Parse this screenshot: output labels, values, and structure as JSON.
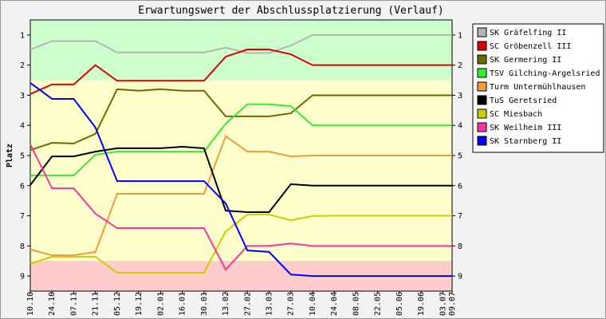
{
  "chart_data": {
    "type": "line",
    "title": "Erwartungswert der Abschlussplatzierung (Verlauf)",
    "y_label": "Platz",
    "categories": [
      "10.10",
      "24.10",
      "07.11",
      "21.11",
      "05.12",
      "19.12",
      "02.01",
      "16.01",
      "30.01",
      "13.02",
      "27.02",
      "13.03",
      "27.03",
      "10.04",
      "24.04",
      "08.05",
      "22.05",
      "05.06",
      "19.06",
      "03.07",
      "09.07"
    ],
    "ylim": [
      9.5,
      0.5
    ],
    "yticks": [
      1,
      2,
      3,
      4,
      5,
      6,
      7,
      8,
      9
    ],
    "zones": [
      {
        "from": 0.5,
        "to": 2.5,
        "color": "#ccffcc"
      },
      {
        "from": 2.5,
        "to": 8.5,
        "color": "#ffffcc"
      },
      {
        "from": 8.5,
        "to": 9.5,
        "color": "#ffcccc"
      }
    ],
    "legend": "right",
    "series": [
      {
        "name": "SK Gräfelfing II",
        "color": "#b4b4b4",
        "values": [
          1.48,
          1.2,
          1.2,
          1.2,
          1.58,
          1.58,
          1.58,
          1.58,
          1.58,
          1.42,
          1.6,
          1.6,
          1.35,
          1.0,
          1.0,
          1.0,
          1.0,
          1.0,
          1.0,
          1.0,
          1.0
        ]
      },
      {
        "name": "SC Gröbenzell III",
        "color": "#e00000",
        "values": [
          2.96,
          2.64,
          2.64,
          2.0,
          2.52,
          2.52,
          2.52,
          2.52,
          2.52,
          1.72,
          1.48,
          1.48,
          1.64,
          2.0,
          2.0,
          2.0,
          2.0,
          2.0,
          2.0,
          2.0,
          2.0
        ]
      },
      {
        "name": "SK Germering II",
        "color": "#6b6b00",
        "values": [
          4.82,
          4.58,
          4.6,
          4.28,
          2.8,
          2.85,
          2.8,
          2.85,
          2.85,
          3.7,
          3.7,
          3.7,
          3.6,
          3.0,
          3.0,
          3.0,
          3.0,
          3.0,
          3.0,
          3.0,
          3.0
        ]
      },
      {
        "name": "TSV Gilching-Argelsried",
        "color": "#33ee33",
        "values": [
          5.66,
          5.66,
          5.66,
          4.97,
          4.87,
          4.87,
          4.87,
          4.87,
          4.87,
          3.94,
          3.3,
          3.3,
          3.36,
          4.0,
          4.0,
          4.0,
          4.0,
          4.0,
          4.0,
          4.0,
          4.0
        ]
      },
      {
        "name": "Turm Untermühlhausen",
        "color": "#f49a3c",
        "values": [
          8.12,
          8.31,
          8.31,
          8.2,
          6.27,
          6.27,
          6.27,
          6.27,
          6.27,
          4.36,
          4.87,
          4.87,
          5.03,
          5.0,
          5.0,
          5.0,
          5.0,
          5.0,
          5.0,
          5.0,
          5.0
        ]
      },
      {
        "name": "TuS Geretsried",
        "color": "#000000",
        "values": [
          5.98,
          5.03,
          5.03,
          4.87,
          4.76,
          4.76,
          4.76,
          4.71,
          4.76,
          6.83,
          6.88,
          6.88,
          5.95,
          6.0,
          6.0,
          6.0,
          6.0,
          6.0,
          6.0,
          6.0,
          6.0
        ]
      },
      {
        "name": "SC Miesbach",
        "color": "#cccc00",
        "values": [
          8.6,
          8.36,
          8.36,
          8.36,
          8.89,
          8.89,
          8.89,
          8.89,
          8.89,
          7.52,
          6.96,
          6.96,
          7.15,
          7.01,
          7.0,
          7.0,
          7.0,
          7.0,
          7.0,
          7.0,
          7.0
        ]
      },
      {
        "name": "SK Weilheim III",
        "color": "#ff3399",
        "values": [
          4.63,
          6.09,
          6.09,
          6.93,
          7.41,
          7.41,
          7.41,
          7.41,
          7.41,
          8.79,
          8.0,
          8.0,
          7.92,
          8.0,
          8.0,
          8.0,
          8.0,
          8.0,
          8.0,
          8.0,
          8.0
        ]
      },
      {
        "name": "SK Starnberg II",
        "color": "#0000ff",
        "values": [
          2.59,
          3.12,
          3.12,
          4.07,
          5.85,
          5.85,
          5.85,
          5.85,
          5.85,
          6.59,
          8.15,
          8.2,
          8.95,
          9.0,
          9.0,
          9.0,
          9.0,
          9.0,
          9.0,
          9.0,
          9.0
        ]
      }
    ]
  }
}
